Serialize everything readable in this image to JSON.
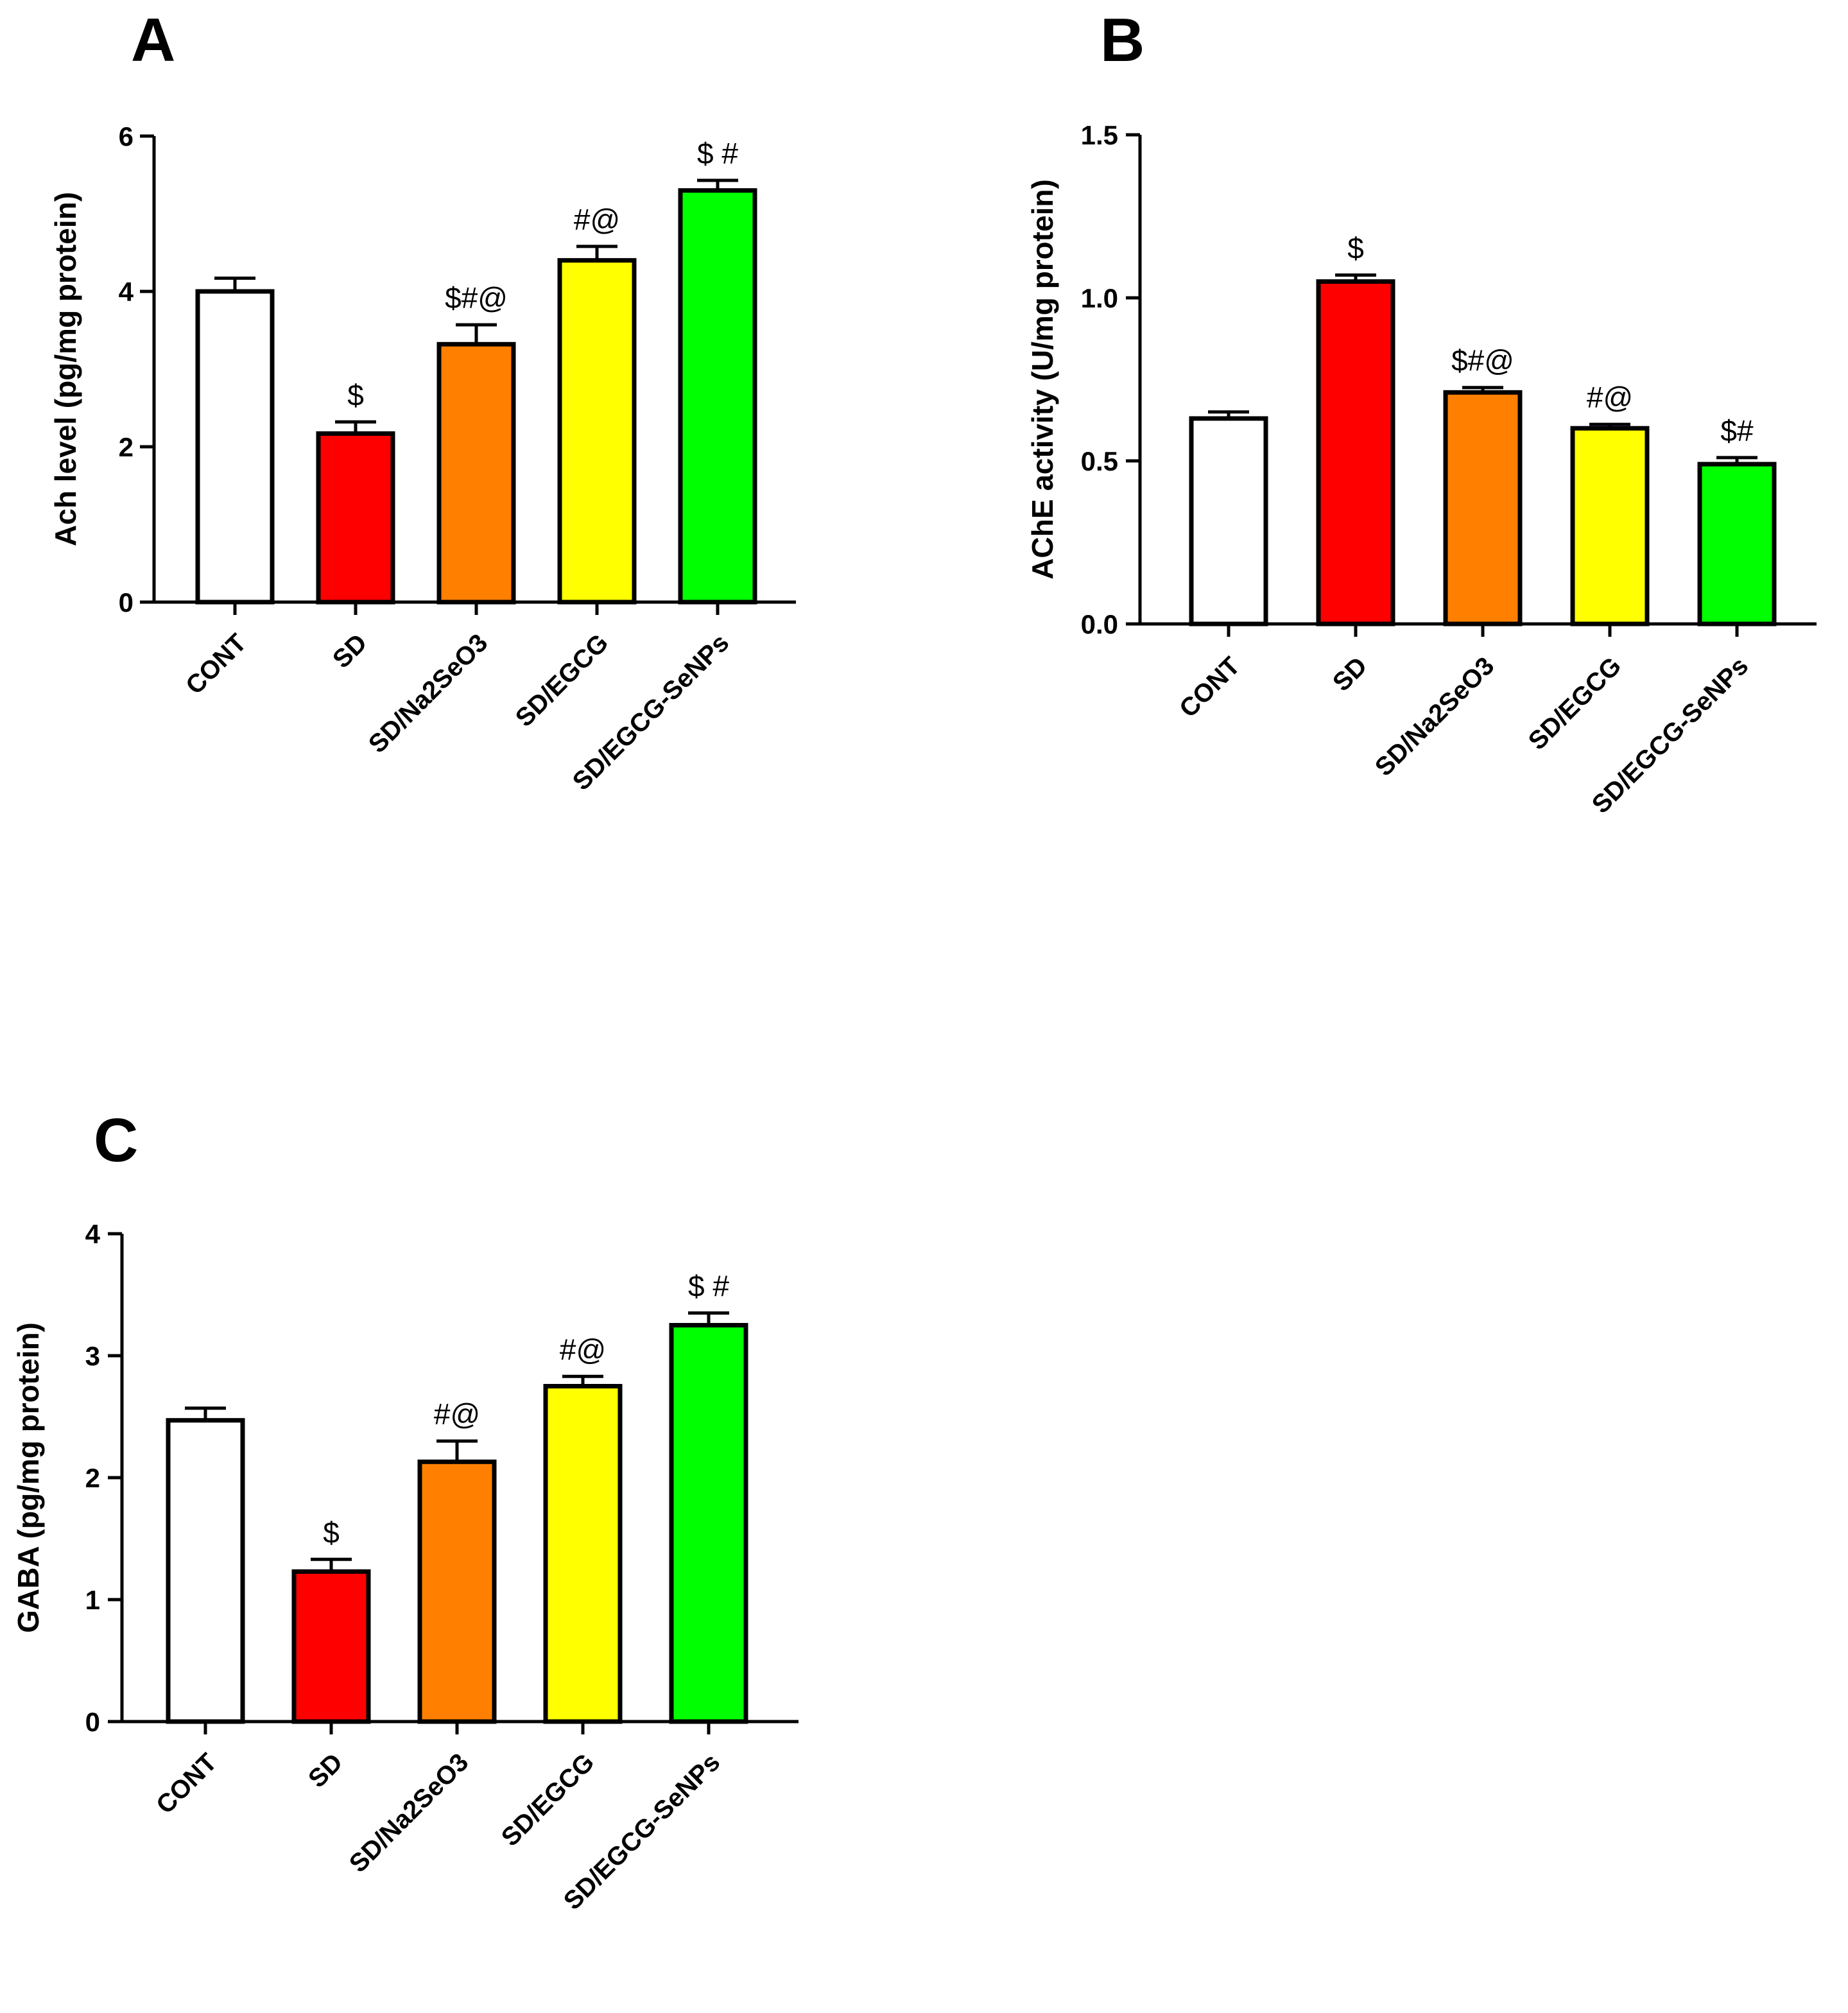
{
  "colors": {
    "cont": "#ffffff",
    "sd": "#ff0000",
    "na2seo3": "#ff8000",
    "egcg": "#ffff00",
    "egcg_senps": "#00ff00",
    "axis": "#000000"
  },
  "chart_data": [
    {
      "type": "bar",
      "panel_label": "A",
      "title": "",
      "xlabel": "",
      "ylabel": "Ach level (pg/mg protein)",
      "ylim": [
        0,
        6
      ],
      "yticks": [
        "0",
        "2",
        "4",
        "6"
      ],
      "categories": [
        "CONT",
        "SD",
        "SD/Na2SeO3",
        "SD/EGCG",
        "SD/EGCG-SeNPs"
      ],
      "values": [
        4.0,
        2.17,
        3.32,
        4.4,
        5.3
      ],
      "errors": [
        0.17,
        0.15,
        0.25,
        0.18,
        0.13
      ],
      "annotations": [
        "",
        "$",
        "$#@",
        "#@",
        "$ #"
      ],
      "colors": [
        "#ffffff",
        "#ff0000",
        "#ff8000",
        "#ffff00",
        "#00ff00"
      ],
      "grid": false
    },
    {
      "type": "bar",
      "panel_label": "B",
      "title": "",
      "xlabel": "",
      "ylabel": "AChE activity (U/mg protein)",
      "ylim": [
        0,
        1.5
      ],
      "yticks": [
        "0.0",
        "0.5",
        "1.0",
        "1.5"
      ],
      "categories": [
        "CONT",
        "SD",
        "SD/Na2SeO3",
        "SD/EGCG",
        "SD/EGCG-SeNPs"
      ],
      "values": [
        0.63,
        1.05,
        0.71,
        0.6,
        0.49
      ],
      "errors": [
        0.02,
        0.02,
        0.015,
        0.012,
        0.02
      ],
      "annotations": [
        "",
        "$",
        "$#@",
        "#@",
        "$#"
      ],
      "colors": [
        "#ffffff",
        "#ff0000",
        "#ff8000",
        "#ffff00",
        "#00ff00"
      ],
      "grid": false
    },
    {
      "type": "bar",
      "panel_label": "C",
      "title": "",
      "xlabel": "",
      "ylabel": "GABA (pg/mg protein)",
      "ylim": [
        0,
        4
      ],
      "yticks": [
        "0",
        "1",
        "2",
        "3",
        "4"
      ],
      "categories": [
        "CONT",
        "SD",
        "SD/Na2SeO3",
        "SD/EGCG",
        "SD/EGCG-SeNPs"
      ],
      "values": [
        2.47,
        1.23,
        2.13,
        2.75,
        3.25
      ],
      "errors": [
        0.1,
        0.1,
        0.17,
        0.08,
        0.1
      ],
      "annotations": [
        "",
        "$",
        "#@",
        "#@",
        "$ #"
      ],
      "colors": [
        "#ffffff",
        "#ff0000",
        "#ff8000",
        "#ffff00",
        "#00ff00"
      ],
      "grid": false
    }
  ]
}
